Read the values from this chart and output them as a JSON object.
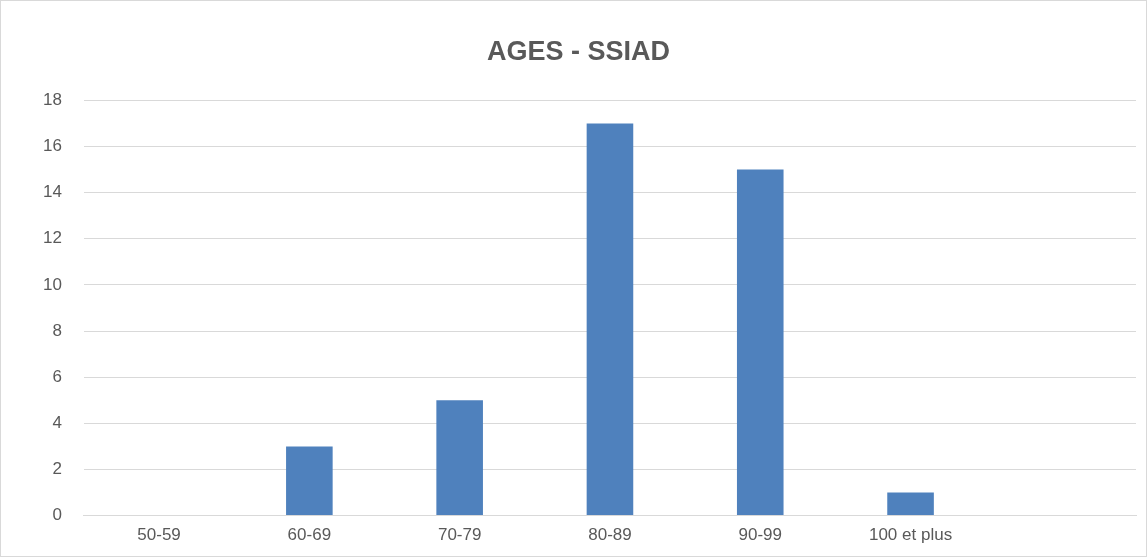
{
  "chart_data": {
    "type": "bar",
    "title": "AGES - SSIAD",
    "categories": [
      "50-59",
      "60-69",
      "70-79",
      "80-89",
      "90-99",
      "100 et plus",
      null
    ],
    "values": [
      0,
      3,
      5,
      17,
      15,
      1,
      null
    ],
    "color": "#4f81bd",
    "ylim": [
      0,
      18
    ],
    "yticks": [
      0,
      2,
      4,
      6,
      8,
      10,
      12,
      14,
      16,
      18
    ],
    "grid": "y",
    "legend": false
  }
}
